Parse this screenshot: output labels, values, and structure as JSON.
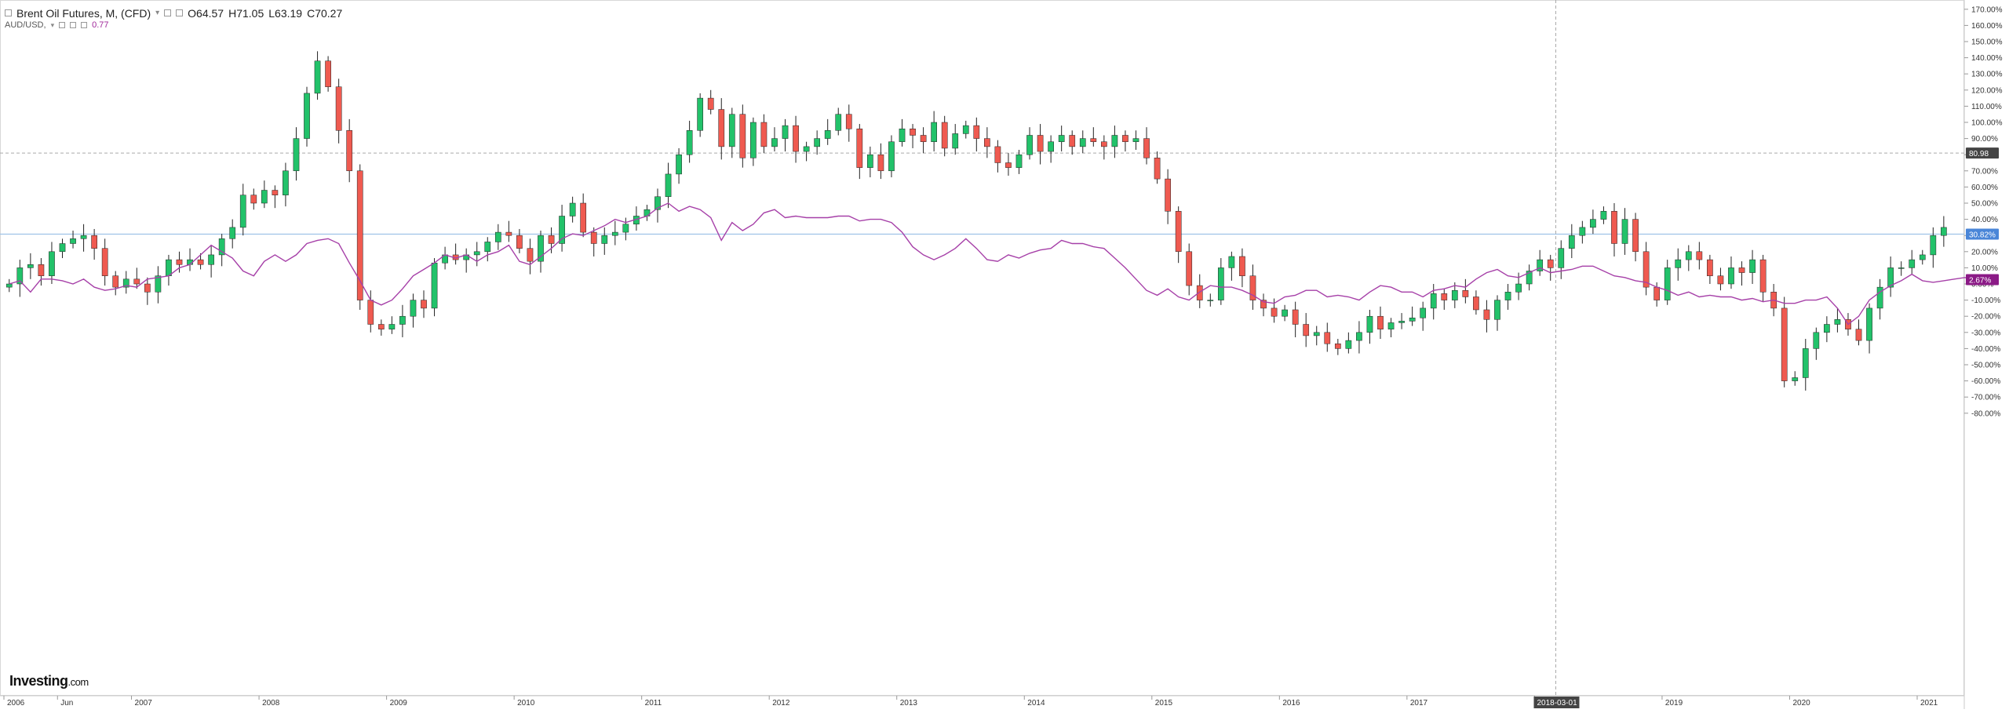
{
  "legend": {
    "instrument": "Brent Oil Futures, M, (CFD)",
    "open": "O64.57",
    "high": "H71.05",
    "low": "L63.19",
    "close": "C70.27",
    "compare_symbol": "AUD/USD,",
    "compare_value": "0.77"
  },
  "logo": {
    "text": "Investing",
    "suffix": ".com"
  },
  "price_tags": {
    "dashed_level": "80.98",
    "current": "30.82%",
    "compare": "2.67%"
  },
  "crosshair_date": "2018-03-01",
  "colors": {
    "up": "#22c26a",
    "down": "#ef5a50",
    "compare_line": "#a640a8",
    "current_line": "#9fc3e7",
    "tag_current": "#4a86d8",
    "tag_compare": "#8b1a86",
    "tag_dashed": "#444444"
  },
  "chart_data": {
    "type": "candlestick",
    "y_unit": "percent change",
    "ylim": [
      -85,
      175
    ],
    "y_ticks": [
      "170.00%",
      "160.00%",
      "150.00%",
      "140.00%",
      "130.00%",
      "120.00%",
      "110.00%",
      "100.00%",
      "90.00%",
      "80.00%",
      "70.00%",
      "60.00%",
      "50.00%",
      "40.00%",
      "30.00%",
      "20.00%",
      "10.00%",
      "0.00%",
      "-10.00%",
      "-20.00%",
      "-30.00%",
      "-40.00%",
      "-50.00%",
      "-60.00%",
      "-70.00%",
      "-80.00%"
    ],
    "y_tick_values": [
      170,
      160,
      150,
      140,
      130,
      120,
      110,
      100,
      90,
      80,
      70,
      60,
      50,
      40,
      30,
      20,
      10,
      0,
      -10,
      -20,
      -30,
      -40,
      -50,
      -60,
      -70,
      -80
    ],
    "x_labels": [
      {
        "label": "2006",
        "t": 2006.0
      },
      {
        "label": "Jun",
        "t": 2006.42
      },
      {
        "label": "2007",
        "t": 2007.0
      },
      {
        "label": "2008",
        "t": 2008.0
      },
      {
        "label": "2009",
        "t": 2009.0
      },
      {
        "label": "2010",
        "t": 2010.0
      },
      {
        "label": "2011",
        "t": 2011.0
      },
      {
        "label": "2012",
        "t": 2012.0
      },
      {
        "label": "2013",
        "t": 2013.0
      },
      {
        "label": "2014",
        "t": 2014.0
      },
      {
        "label": "2015",
        "t": 2015.0
      },
      {
        "label": "2016",
        "t": 2016.0
      },
      {
        "label": "2017",
        "t": 2017.0
      },
      {
        "label": "2018",
        "t": 2018.0
      },
      {
        "label": "2019",
        "t": 2019.0
      },
      {
        "label": "2020",
        "t": 2020.0
      },
      {
        "label": "2021",
        "t": 2021.0
      }
    ],
    "series": [
      {
        "name": "Brent Oil Futures, M, (CFD)",
        "type": "candlestick",
        "start": "2006-01",
        "close_pct": [
          0,
          10,
          12,
          5,
          20,
          25,
          28,
          30,
          22,
          5,
          -2,
          3,
          0,
          -5,
          5,
          15,
          12,
          15,
          12,
          18,
          28,
          35,
          55,
          50,
          58,
          55,
          70,
          90,
          118,
          138,
          122,
          95,
          70,
          -10,
          -25,
          -28,
          -25,
          -20,
          -10,
          -15,
          13,
          18,
          15,
          18,
          20,
          26,
          32,
          30,
          22,
          14,
          30,
          25,
          42,
          50,
          32,
          25,
          30,
          32,
          37,
          42,
          46,
          54,
          68,
          80,
          95,
          115,
          108,
          85,
          105,
          78,
          100,
          85,
          90,
          98,
          82,
          85,
          90,
          95,
          105,
          96,
          72,
          80,
          70,
          88,
          96,
          92,
          88,
          100,
          84,
          93,
          98,
          90,
          85,
          75,
          72,
          80,
          92,
          82,
          88,
          92,
          85,
          90,
          88,
          85,
          92,
          88,
          90,
          78,
          65,
          45,
          20,
          -1,
          -10,
          -10,
          10,
          17,
          5,
          -10,
          -15,
          -20,
          -16,
          -25,
          -32,
          -30,
          -37,
          -40,
          -35,
          -30,
          -20,
          -28,
          -24,
          -23,
          -21,
          -15,
          -6,
          -10,
          -4,
          -8,
          -16,
          -22,
          -10,
          -5,
          0,
          8,
          15,
          10,
          22,
          30,
          35,
          40,
          45,
          25,
          40,
          20,
          -2,
          -10,
          10,
          15,
          20,
          15,
          5,
          0,
          10,
          7,
          15,
          -5,
          -15,
          -60,
          -58,
          -40,
          -30,
          -25,
          -22,
          -28,
          -35,
          -15,
          -2,
          10,
          10,
          15,
          18,
          30,
          35
        ]
      },
      {
        "name": "AUD/USD",
        "type": "line",
        "start": "2006-01",
        "values_pct": [
          0,
          2,
          -5,
          3,
          3,
          2,
          0,
          3,
          -2,
          -4,
          -3,
          -1,
          -2,
          3,
          4,
          5,
          10,
          12,
          18,
          24,
          20,
          16,
          8,
          5,
          14,
          18,
          14,
          18,
          25,
          27,
          28,
          25,
          13,
          2,
          -10,
          -13,
          -10,
          -3,
          5,
          9,
          13,
          18,
          16,
          18,
          14,
          18,
          20,
          24,
          14,
          12,
          17,
          22,
          28,
          31,
          30,
          33,
          36,
          40,
          38,
          40,
          42,
          47,
          50,
          45,
          48,
          46,
          41,
          27,
          38,
          33,
          37,
          44,
          46,
          41,
          42,
          41,
          41,
          41,
          42,
          42,
          39,
          40,
          40,
          38,
          32,
          23,
          18,
          15,
          18,
          22,
          28,
          22,
          15,
          14,
          18,
          16,
          19,
          21,
          22,
          27,
          25,
          25,
          23,
          22,
          16,
          10,
          3,
          -4,
          -7,
          -3,
          -8,
          -10,
          -5,
          -1,
          -2,
          -2,
          -4,
          -7,
          -11,
          -12,
          -8,
          -7,
          -4,
          -4,
          -8,
          -7,
          -8,
          -10,
          -5,
          -1,
          -2,
          -5,
          -5,
          -8,
          -4,
          -3,
          -1,
          -2,
          3,
          7,
          9,
          5,
          4,
          7,
          10,
          7,
          8,
          9,
          11,
          11,
          8,
          5,
          4,
          2,
          1,
          -2,
          -4,
          -7,
          -5,
          -8,
          -7,
          -8,
          -8,
          -10,
          -9,
          -11,
          -10,
          -12,
          -12,
          -10,
          -10,
          -8,
          -15,
          -25,
          -20,
          -10,
          -5,
          -1,
          2,
          6,
          2,
          1,
          2,
          3,
          4,
          2,
          2
        ]
      }
    ],
    "reference_lines": [
      {
        "label": "80.98",
        "value": 80.98,
        "style": "dashed"
      },
      {
        "label": "30.82%",
        "value": 30.82,
        "style": "solid"
      }
    ],
    "crosshair": {
      "date": "2018-03-01"
    }
  }
}
